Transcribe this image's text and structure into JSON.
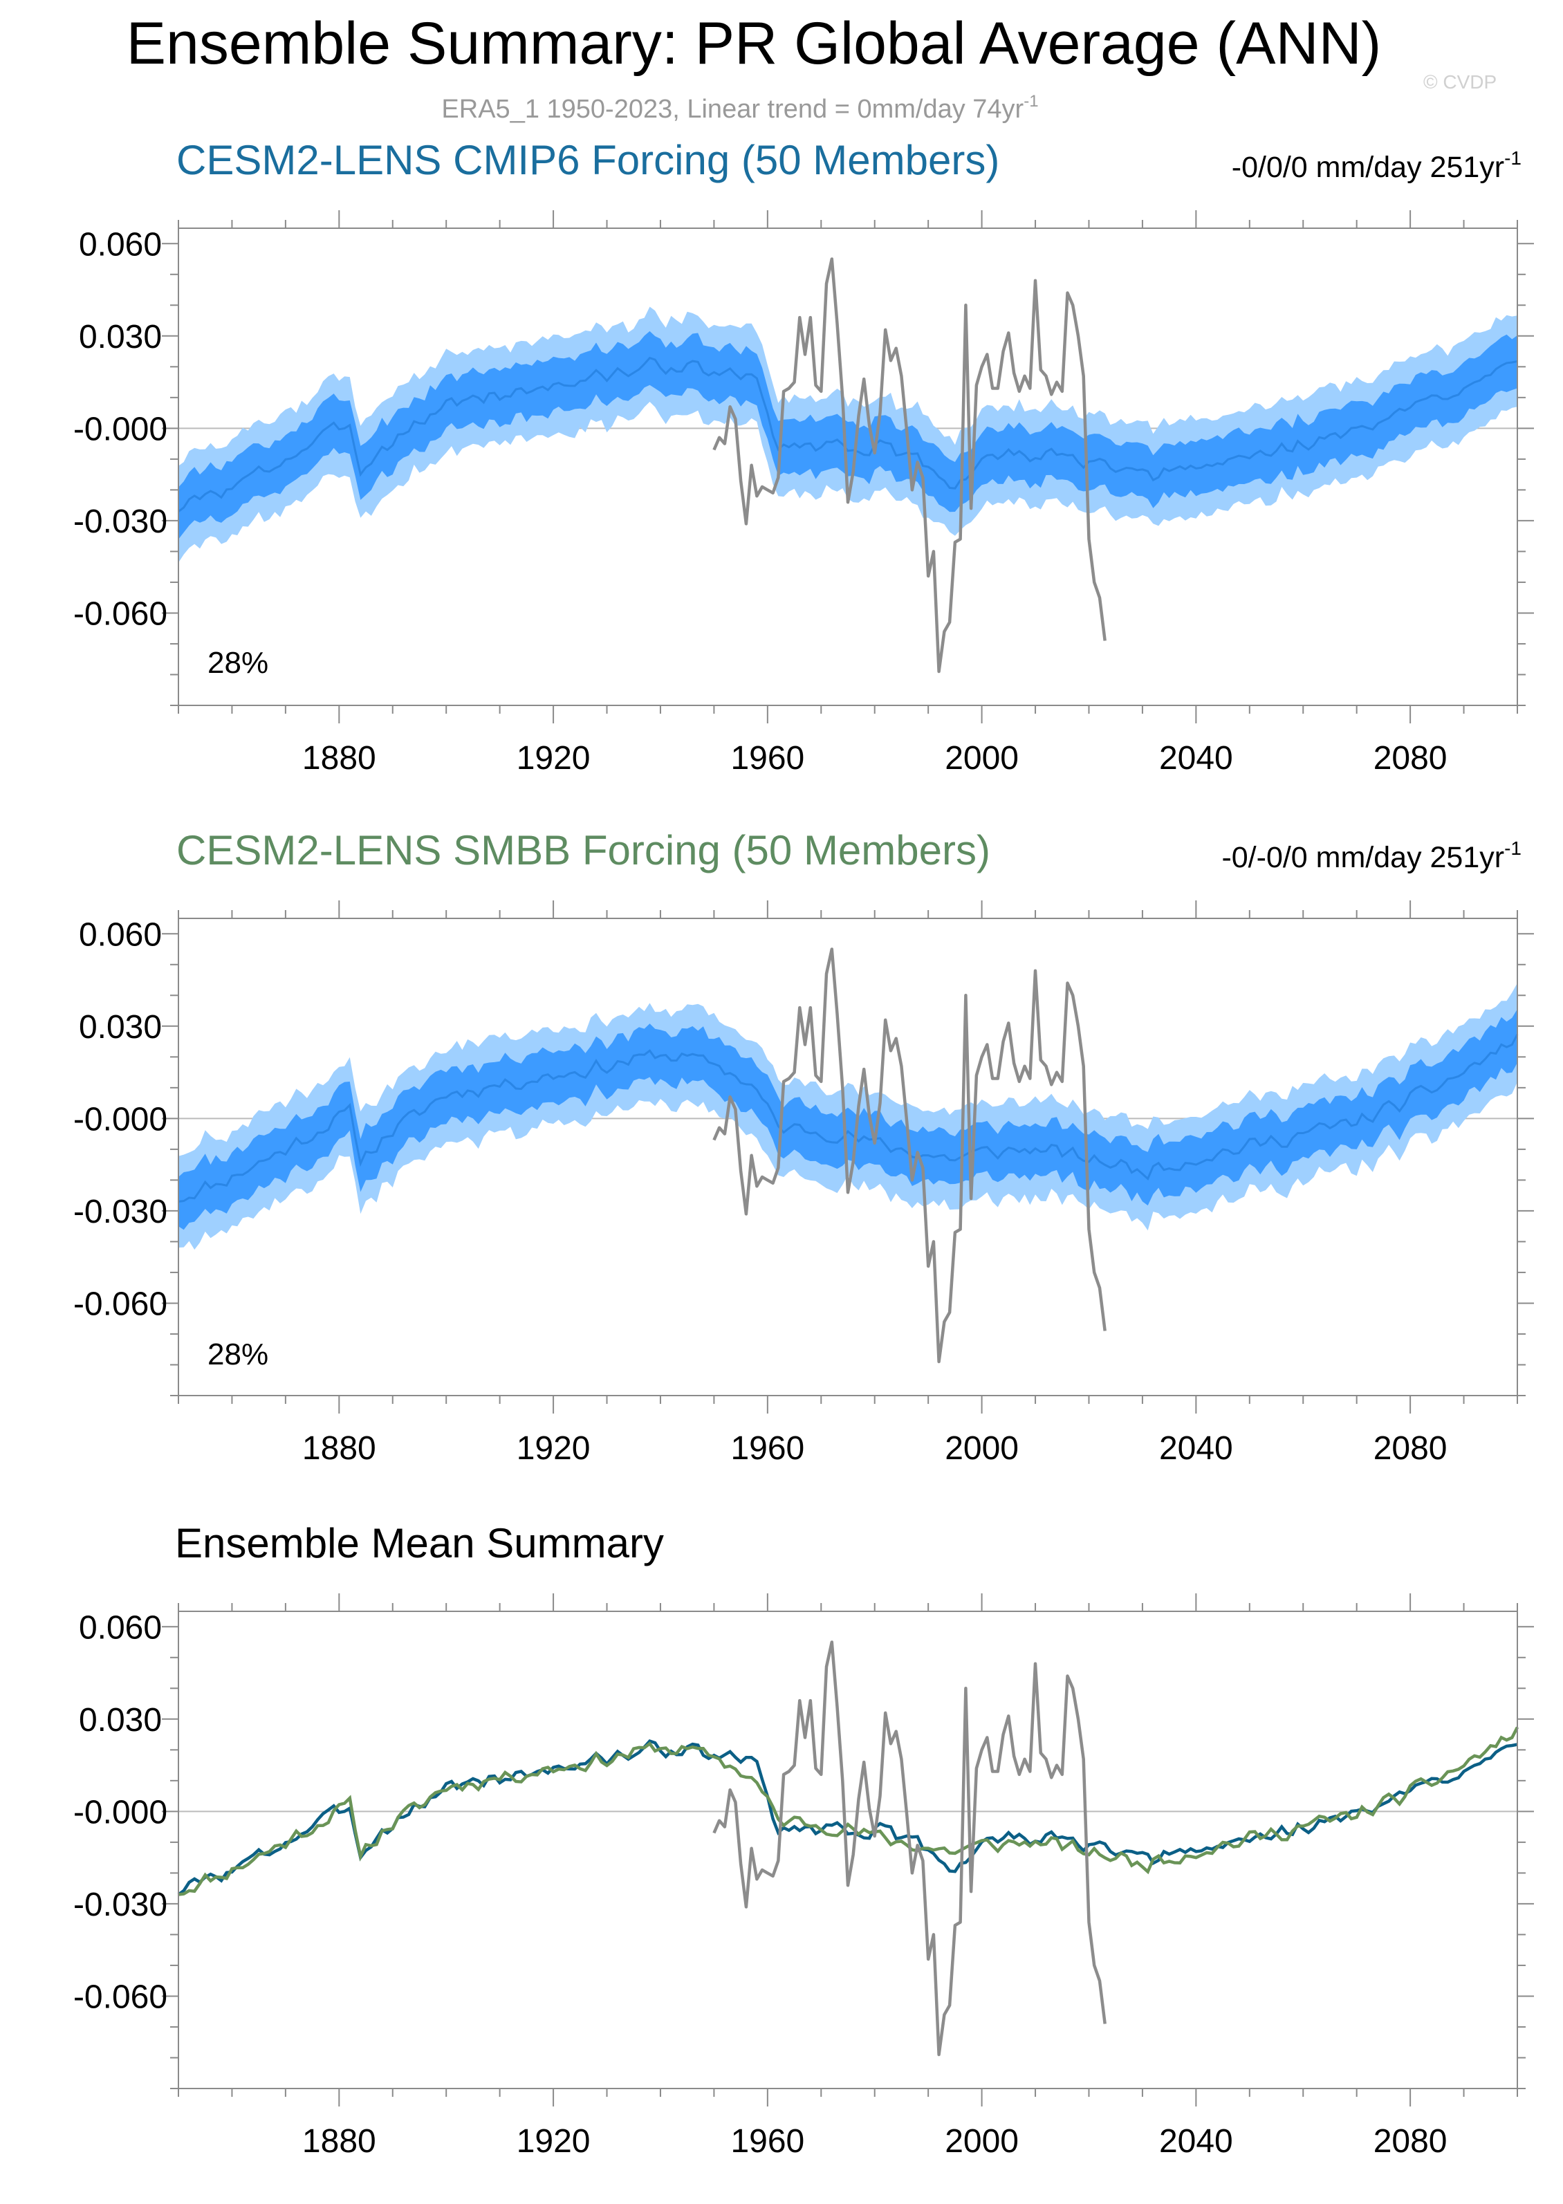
{
  "title": "Ensemble Summary: PR Global Average (ANN)",
  "subtitle": "ERA5_1 1950-2023, Linear trend = 0mm/day 74yr",
  "subtitle_sup": "-1",
  "watermark": "© CVDP",
  "colors": {
    "cmip6_title": "#1a6e9e",
    "smbb_title": "#5e8c61",
    "outer_band": "#9fd0ff",
    "inner_band": "#3d9bff",
    "mean_line": "#2a86e6",
    "obs_line": "#8c8c8c",
    "cmip6_mean": "#0b5f86",
    "smbb_mean": "#6a9457",
    "zero_line": "#bbbbbb",
    "frame": "#8a8a8a"
  },
  "chart_data": [
    {
      "type": "area",
      "title": "CESM2-LENS CMIP6 Forcing (50 Members)",
      "trend_label": "-0/0/0 mm/day 251yr",
      "trend_sup": "-1",
      "percent_label": "28%",
      "xlim": [
        1850,
        2100
      ],
      "ylim": [
        -0.09,
        0.065
      ],
      "xticks": [
        1880,
        1920,
        1960,
        2000,
        2040,
        2080
      ],
      "xtick_labels": [
        "1880",
        "1920",
        "1960",
        "2000",
        "2040",
        "2080"
      ],
      "yticks": [
        0.06,
        0.03,
        0.0,
        -0.03,
        -0.06
      ],
      "ytick_labels": [
        "0.060",
        "0.030",
        "-0.000",
        "-0.030",
        "-0.060"
      ],
      "series": [
        {
          "name": "ensemble mean",
          "key": [
            [
              1850,
              -0.026
            ],
            [
              1860,
              -0.019
            ],
            [
              1870,
              -0.01
            ],
            [
              1878,
              -0.002
            ],
            [
              1882,
              0.002
            ],
            [
              1884,
              -0.013
            ],
            [
              1890,
              -0.004
            ],
            [
              1900,
              0.008
            ],
            [
              1910,
              0.011
            ],
            [
              1920,
              0.014
            ],
            [
              1930,
              0.017
            ],
            [
              1940,
              0.021
            ],
            [
              1950,
              0.018
            ],
            [
              1955,
              0.017
            ],
            [
              1958,
              0.015
            ],
            [
              1962,
              -0.006
            ],
            [
              1970,
              -0.005
            ],
            [
              1980,
              -0.006
            ],
            [
              1990,
              -0.012
            ],
            [
              1995,
              -0.019
            ],
            [
              2000,
              -0.01
            ],
            [
              2010,
              -0.008
            ],
            [
              2020,
              -0.011
            ],
            [
              2030,
              -0.016
            ],
            [
              2040,
              -0.013
            ],
            [
              2050,
              -0.009
            ],
            [
              2060,
              -0.005
            ],
            [
              2070,
              -0.001
            ],
            [
              2080,
              0.006
            ],
            [
              2090,
              0.014
            ],
            [
              2100,
              0.024
            ]
          ],
          "seed": 3,
          "jitter": 0.0035
        },
        {
          "name": "ERA5_1 1950-2023",
          "points": [
            [
              1950,
              -0.007
            ],
            [
              1951,
              -0.003
            ],
            [
              1952,
              -0.005
            ],
            [
              1953,
              0.007
            ],
            [
              1954,
              0.003
            ],
            [
              1955,
              -0.017
            ],
            [
              1956,
              -0.031
            ],
            [
              1957,
              -0.012
            ],
            [
              1958,
              -0.022
            ],
            [
              1959,
              -0.019
            ],
            [
              1960,
              -0.02
            ],
            [
              1961,
              -0.021
            ],
            [
              1962,
              -0.016
            ],
            [
              1963,
              0.012
            ],
            [
              1964,
              0.013
            ],
            [
              1965,
              0.015
            ],
            [
              1966,
              0.036
            ],
            [
              1967,
              0.024
            ],
            [
              1968,
              0.036
            ],
            [
              1969,
              0.014
            ],
            [
              1970,
              0.012
            ],
            [
              1971,
              0.047
            ],
            [
              1972,
              0.055
            ],
            [
              1973,
              0.034
            ],
            [
              1974,
              0.01
            ],
            [
              1975,
              -0.024
            ],
            [
              1976,
              -0.014
            ],
            [
              1977,
              0.004
            ],
            [
              1978,
              0.016
            ],
            [
              1979,
              0.001
            ],
            [
              1980,
              -0.008
            ],
            [
              1981,
              0.005
            ],
            [
              1982,
              0.032
            ],
            [
              1983,
              0.022
            ],
            [
              1984,
              0.026
            ],
            [
              1985,
              0.017
            ],
            [
              1986,
              -0.001
            ],
            [
              1987,
              -0.02
            ],
            [
              1988,
              -0.011
            ],
            [
              1989,
              -0.016
            ],
            [
              1990,
              -0.048
            ],
            [
              1991,
              -0.04
            ],
            [
              1992,
              -0.079
            ],
            [
              1993,
              -0.066
            ],
            [
              1994,
              -0.063
            ],
            [
              1995,
              -0.037
            ],
            [
              1996,
              -0.036
            ],
            [
              1997,
              0.04
            ],
            [
              1998,
              -0.026
            ],
            [
              1999,
              0.014
            ],
            [
              2000,
              0.02
            ],
            [
              2001,
              0.024
            ],
            [
              2002,
              0.013
            ],
            [
              2003,
              0.013
            ],
            [
              2004,
              0.025
            ],
            [
              2005,
              0.031
            ],
            [
              2006,
              0.018
            ],
            [
              2007,
              0.012
            ],
            [
              2008,
              0.017
            ],
            [
              2009,
              0.013
            ],
            [
              2010,
              0.048
            ],
            [
              2011,
              0.019
            ],
            [
              2012,
              0.017
            ],
            [
              2013,
              0.011
            ],
            [
              2014,
              0.015
            ],
            [
              2015,
              0.012
            ],
            [
              2016,
              0.044
            ],
            [
              2017,
              0.04
            ],
            [
              2018,
              0.03
            ],
            [
              2019,
              0.017
            ],
            [
              2020,
              -0.036
            ],
            [
              2021,
              -0.05
            ],
            [
              2022,
              -0.055
            ],
            [
              2023,
              -0.069
            ]
          ]
        }
      ]
    },
    {
      "type": "area",
      "title": "CESM2-LENS SMBB Forcing (50 Members)",
      "trend_label": "-0/-0/0 mm/day 251yr",
      "trend_sup": "-1",
      "percent_label": "28%",
      "xlim": [
        1850,
        2100
      ],
      "ylim": [
        -0.09,
        0.065
      ],
      "xticks": [
        1880,
        1920,
        1960,
        2000,
        2040,
        2080
      ],
      "xtick_labels": [
        "1880",
        "1920",
        "1960",
        "2000",
        "2040",
        "2080"
      ],
      "yticks": [
        0.06,
        0.03,
        0.0,
        -0.03,
        -0.06
      ],
      "ytick_labels": [
        "0.060",
        "0.030",
        "-0.000",
        "-0.030",
        "-0.060"
      ],
      "series": [
        {
          "name": "ensemble mean",
          "key": [
            [
              1850,
              -0.026
            ],
            [
              1860,
              -0.019
            ],
            [
              1870,
              -0.01
            ],
            [
              1878,
              -0.002
            ],
            [
              1882,
              0.002
            ],
            [
              1884,
              -0.013
            ],
            [
              1890,
              -0.004
            ],
            [
              1900,
              0.008
            ],
            [
              1910,
              0.011
            ],
            [
              1920,
              0.014
            ],
            [
              1930,
              0.017
            ],
            [
              1940,
              0.021
            ],
            [
              1950,
              0.018
            ],
            [
              1955,
              0.013
            ],
            [
              1958,
              0.009
            ],
            [
              1962,
              -0.003
            ],
            [
              1970,
              -0.004
            ],
            [
              1980,
              -0.008
            ],
            [
              1990,
              -0.012
            ],
            [
              1995,
              -0.013
            ],
            [
              2000,
              -0.011
            ],
            [
              2010,
              -0.01
            ],
            [
              2020,
              -0.013
            ],
            [
              2030,
              -0.017
            ],
            [
              2040,
              -0.013
            ],
            [
              2050,
              -0.009
            ],
            [
              2060,
              -0.005
            ],
            [
              2070,
              -0.001
            ],
            [
              2080,
              0.006
            ],
            [
              2090,
              0.015
            ],
            [
              2100,
              0.026
            ]
          ],
          "seed": 11,
          "jitter": 0.0035
        },
        {
          "name": "ERA5_1 1950-2023",
          "same_as": "chart_data.0.series.1"
        }
      ]
    },
    {
      "type": "line",
      "title": "Ensemble Mean Summary",
      "xlim": [
        1850,
        2100
      ],
      "ylim": [
        -0.09,
        0.065
      ],
      "xticks": [
        1880,
        1920,
        1960,
        2000,
        2040,
        2080
      ],
      "xtick_labels": [
        "1880",
        "1920",
        "1960",
        "2000",
        "2040",
        "2080"
      ],
      "yticks": [
        0.06,
        0.03,
        0.0,
        -0.03,
        -0.06
      ],
      "ytick_labels": [
        "0.060",
        "0.030",
        "-0.000",
        "-0.030",
        "-0.060"
      ],
      "series": [
        {
          "name": "CESM2-LENS CMIP6 Forcing",
          "from": "chart_data.0.series.0"
        },
        {
          "name": "CESM2-LENS SMBB Forcing",
          "from": "chart_data.1.series.0"
        },
        {
          "name": "ERA5_1 1950-2023",
          "from": "chart_data.0.series.1"
        }
      ]
    }
  ]
}
